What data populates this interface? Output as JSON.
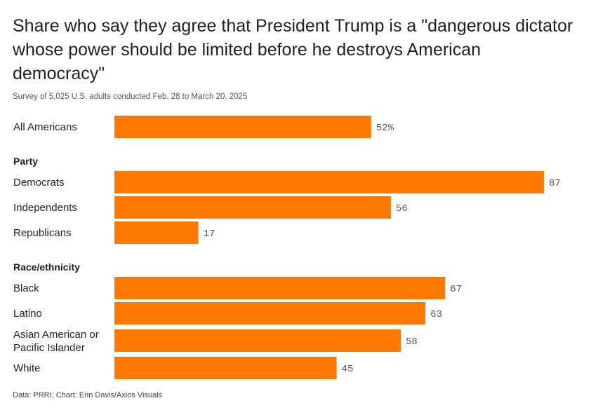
{
  "title": "Share who say they agree that President Trump is a \"dangerous dictator whose power should be limited before he destroys American democracy\"",
  "subtitle": "Survey of 5,025 U.S. adults conducted Feb. 28 to March 20, 2025",
  "footer": "Data: PRRI; Chart: Erin Davis/Axios Visuals",
  "colors": {
    "bar": "#ff7900",
    "text": "#222222",
    "value": "#555555"
  },
  "chart_data": {
    "type": "bar",
    "orientation": "horizontal",
    "title": "Share who say they agree that President Trump is a \"dangerous dictator whose power should be limited before he destroys American democracy\"",
    "xlim": [
      0,
      100
    ],
    "grid": false,
    "legend": "none",
    "groups": [
      {
        "heading": "",
        "rows": [
          {
            "label": [
              "All Americans"
            ],
            "value": 52,
            "value_label": "52%"
          }
        ]
      },
      {
        "heading": "Party",
        "rows": [
          {
            "label": [
              "Democrats"
            ],
            "value": 87,
            "value_label": "87"
          },
          {
            "label": [
              "Independents"
            ],
            "value": 56,
            "value_label": "56"
          },
          {
            "label": [
              "Republicans"
            ],
            "value": 17,
            "value_label": "17"
          }
        ]
      },
      {
        "heading": "Race/ethnicity",
        "rows": [
          {
            "label": [
              "Black"
            ],
            "value": 67,
            "value_label": "67"
          },
          {
            "label": [
              "Latino"
            ],
            "value": 63,
            "value_label": "63"
          },
          {
            "label": [
              "Asian American or",
              "Pacific Islander"
            ],
            "value": 58,
            "value_label": "58"
          },
          {
            "label": [
              "White"
            ],
            "value": 45,
            "value_label": "45"
          }
        ]
      }
    ]
  }
}
